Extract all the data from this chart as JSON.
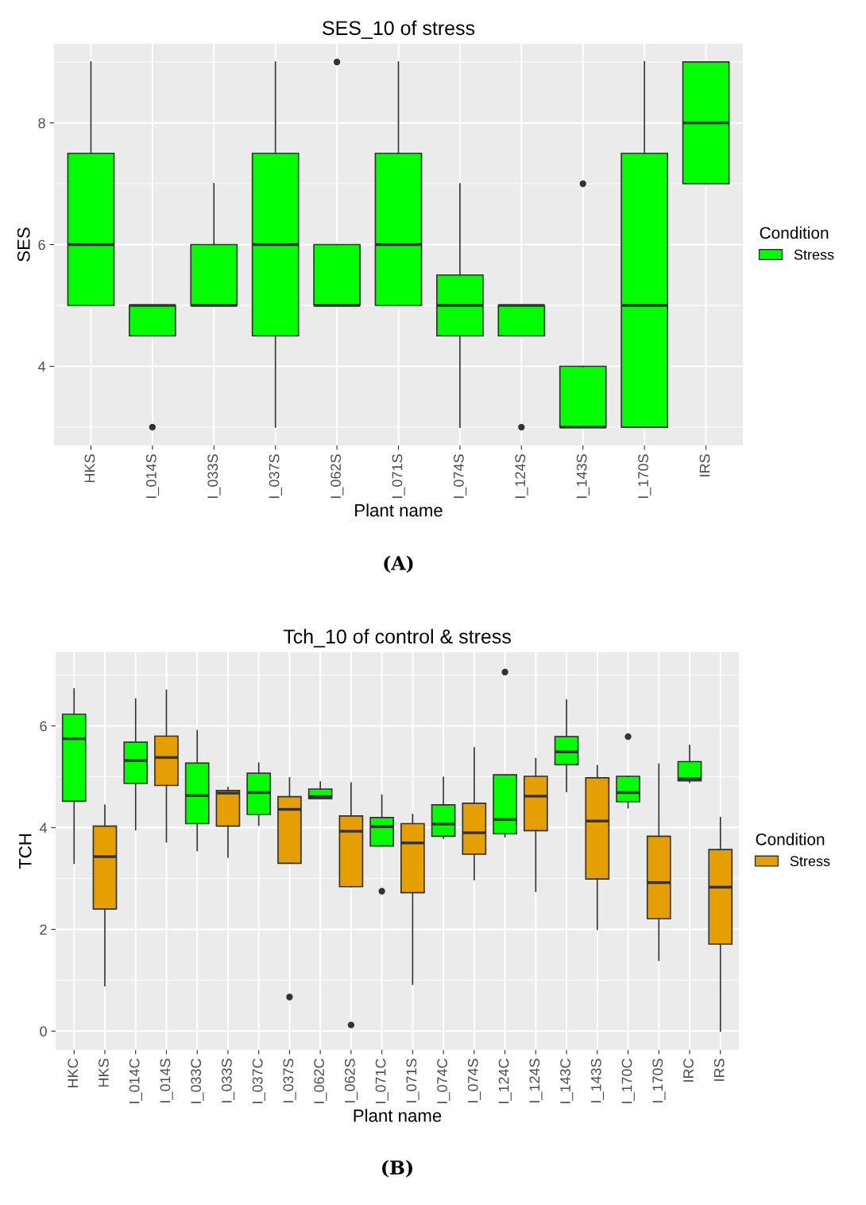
{
  "chart_data": [
    {
      "type": "box",
      "title": "SES_10 of stress",
      "xlabel": "Plant name",
      "ylabel": "SES",
      "legend_title": "Condition",
      "legend": "right",
      "grid": true,
      "categories": [
        "HKS",
        "I_014S",
        "I_033S",
        "I_037S",
        "I_062S",
        "I_071S",
        "I_074S",
        "I_124S",
        "I_143S",
        "I_170S",
        "IRS"
      ],
      "ylim": [
        2.7,
        9.3
      ],
      "yticks": [
        4,
        6,
        8
      ],
      "series": [
        {
          "name": "Stress",
          "color": "#00ff00",
          "boxes": [
            {
              "low": 5,
              "q1": 5,
              "median": 6,
              "q3": 7.5,
              "high": 9
            },
            {
              "low": 4.5,
              "q1": 4.5,
              "median": 5,
              "q3": 5,
              "high": 5,
              "outliers": [
                3
              ]
            },
            {
              "low": 5,
              "q1": 5,
              "median": 5,
              "q3": 6,
              "high": 7
            },
            {
              "low": 3,
              "q1": 4.5,
              "median": 6,
              "q3": 7.5,
              "high": 9
            },
            {
              "low": 5,
              "q1": 5,
              "median": 5,
              "q3": 6,
              "high": 6,
              "outliers": [
                9
              ]
            },
            {
              "low": 5,
              "q1": 5,
              "median": 6,
              "q3": 7.5,
              "high": 9
            },
            {
              "low": 3,
              "q1": 4.5,
              "median": 5,
              "q3": 5.5,
              "high": 7
            },
            {
              "low": 4.5,
              "q1": 4.5,
              "median": 5,
              "q3": 5,
              "high": 5,
              "outliers": [
                3
              ]
            },
            {
              "low": 3,
              "q1": 3,
              "median": 3,
              "q3": 4,
              "high": 4,
              "outliers": [
                7
              ]
            },
            {
              "low": 3,
              "q1": 3,
              "median": 5,
              "q3": 7.5,
              "high": 9
            },
            {
              "low": 7,
              "q1": 7,
              "median": 8,
              "q3": 9,
              "high": 9
            }
          ]
        }
      ],
      "annotations": [
        "(A)"
      ]
    },
    {
      "type": "box",
      "title": "Tch_10 of control & stress",
      "xlabel": "Plant name",
      "ylabel": "TCH",
      "legend_title": "Condition",
      "legend": "right",
      "grid": true,
      "categories": [
        "HKC",
        "HKS",
        "I_014C",
        "I_014S",
        "I_033C",
        "I_033S",
        "I_037C",
        "I_037S",
        "I_062C",
        "I_062S",
        "I_071C",
        "I_071S",
        "I_074C",
        "I_074S",
        "I_124C",
        "I_124S",
        "I_143C",
        "I_143S",
        "I_170C",
        "I_170S",
        "IRC",
        "IRS"
      ],
      "ylim": [
        -0.37,
        7.45
      ],
      "yticks": [
        0,
        2,
        4,
        6
      ],
      "series": [
        {
          "color": "#00ff00",
          "boxes": [
            {
              "low": 3.3,
              "q1": 4.52,
              "median": 5.75,
              "q3": 6.23,
              "high": 6.73
            },
            null,
            {
              "low": 3.96,
              "q1": 4.87,
              "median": 5.32,
              "q3": 5.68,
              "high": 6.53
            },
            null,
            {
              "low": 3.55,
              "q1": 4.08,
              "median": 4.63,
              "q3": 5.27,
              "high": 5.91
            },
            null,
            {
              "low": 4.05,
              "q1": 4.26,
              "median": 4.69,
              "q3": 5.07,
              "high": 5.27
            },
            null,
            {
              "low": 4.57,
              "q1": 4.57,
              "median": 4.61,
              "q3": 4.76,
              "high": 4.9
            },
            null,
            {
              "low": 3.64,
              "q1": 3.64,
              "median": 4.02,
              "q3": 4.2,
              "high": 4.64,
              "outliers": [
                2.75
              ]
            },
            null,
            {
              "low": 3.79,
              "q1": 3.83,
              "median": 4.07,
              "q3": 4.45,
              "high": 4.99
            },
            null,
            {
              "low": 3.82,
              "q1": 3.88,
              "median": 4.16,
              "q3": 5.04,
              "high": 5.04,
              "outliers": [
                7.06
              ]
            },
            null,
            {
              "low": 4.71,
              "q1": 5.24,
              "median": 5.49,
              "q3": 5.79,
              "high": 6.51
            },
            null,
            {
              "low": 4.39,
              "q1": 4.51,
              "median": 4.69,
              "q3": 5.01,
              "high": 5.01,
              "outliers": [
                5.79
              ]
            },
            null,
            {
              "low": 4.89,
              "q1": 4.92,
              "median": 4.96,
              "q3": 5.3,
              "high": 5.62
            },
            null
          ]
        },
        {
          "name": "Stress",
          "color": "#e69f00",
          "boxes": [
            null,
            {
              "low": 0.89,
              "q1": 2.4,
              "median": 3.43,
              "q3": 4.03,
              "high": 4.44
            },
            null,
            {
              "low": 3.72,
              "q1": 4.83,
              "median": 5.38,
              "q3": 5.8,
              "high": 6.7
            },
            null,
            {
              "low": 3.42,
              "q1": 4.03,
              "median": 4.68,
              "q3": 4.73,
              "high": 4.79
            },
            null,
            {
              "low": 3.3,
              "q1": 3.3,
              "median": 4.36,
              "q3": 4.61,
              "high": 4.98,
              "outliers": [
                0.67
              ]
            },
            null,
            {
              "low": 2.84,
              "q1": 2.84,
              "median": 3.93,
              "q3": 4.23,
              "high": 4.88,
              "outliers": [
                0.12
              ]
            },
            null,
            {
              "low": 0.92,
              "q1": 2.72,
              "median": 3.7,
              "q3": 4.08,
              "high": 4.26
            },
            null,
            {
              "low": 2.98,
              "q1": 3.48,
              "median": 3.9,
              "q3": 4.48,
              "high": 5.57
            },
            null,
            {
              "low": 2.75,
              "q1": 3.94,
              "median": 4.62,
              "q3": 5.01,
              "high": 5.36
            },
            null,
            {
              "low": 2.0,
              "q1": 2.99,
              "median": 4.13,
              "q3": 4.98,
              "high": 5.22
            },
            null,
            {
              "low": 1.39,
              "q1": 2.21,
              "median": 2.92,
              "q3": 3.83,
              "high": 5.25
            },
            null,
            {
              "low": 0,
              "q1": 1.71,
              "median": 2.83,
              "q3": 3.57,
              "high": 4.2
            }
          ]
        }
      ],
      "annotations": [
        "(B)"
      ]
    }
  ]
}
